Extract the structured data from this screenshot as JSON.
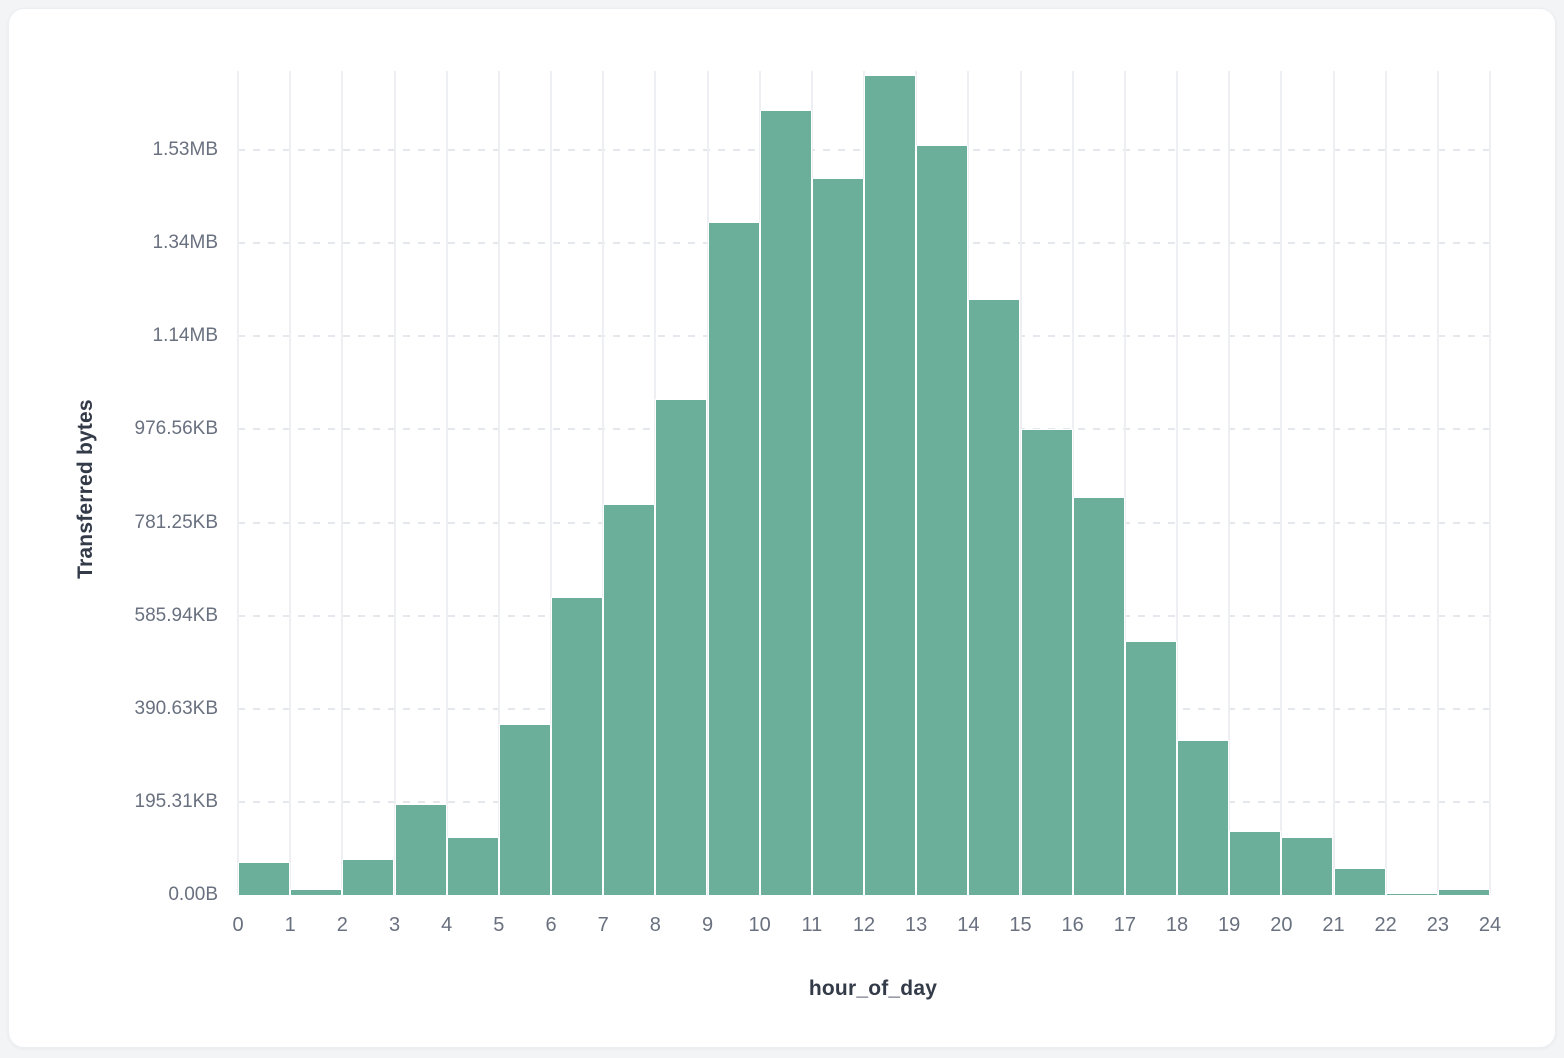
{
  "card": {
    "background": "#ffffff",
    "border_color": "#eceff2"
  },
  "colors": {
    "bar": "#6bae99",
    "grid_vertical": "#edeff2",
    "grid_horizontal": "#e4e7eb",
    "tick_text": "#69707f",
    "axis_title_text": "#333a48",
    "page_background": "#f2f4f6"
  },
  "chart_data": {
    "type": "bar",
    "title": "",
    "xlabel": "hour_of_day",
    "ylabel": "Transferred bytes",
    "categories": [
      0,
      1,
      2,
      3,
      4,
      5,
      6,
      7,
      8,
      9,
      10,
      11,
      12,
      13,
      14,
      15,
      16,
      17,
      18,
      19,
      20,
      21,
      22,
      23
    ],
    "values_bytes": [
      70600,
      13000,
      77000,
      195000,
      124000,
      368000,
      640000,
      839000,
      1066000,
      1445000,
      1687000,
      1540000,
      1762000,
      1612000,
      1280000,
      1000000,
      854000,
      546000,
      334000,
      137000,
      124000,
      58000,
      4000,
      12000
    ],
    "x_ticks": [
      "0",
      "1",
      "2",
      "3",
      "4",
      "5",
      "6",
      "7",
      "8",
      "9",
      "10",
      "11",
      "12",
      "13",
      "14",
      "15",
      "16",
      "17",
      "18",
      "19",
      "20",
      "21",
      "22",
      "23",
      "24"
    ],
    "y_ticks": [
      {
        "label": "0.00B",
        "bytes": 0
      },
      {
        "label": "195.31KB",
        "bytes": 200000
      },
      {
        "label": "390.63KB",
        "bytes": 400000
      },
      {
        "label": "585.94KB",
        "bytes": 600000
      },
      {
        "label": "781.25KB",
        "bytes": 800000
      },
      {
        "label": "976.56KB",
        "bytes": 1000000
      },
      {
        "label": "1.14MB",
        "bytes": 1200000
      },
      {
        "label": "1.34MB",
        "bytes": 1400000
      },
      {
        "label": "1.53MB",
        "bytes": 1600000
      }
    ],
    "x_domain": [
      0,
      24
    ],
    "y_max_bytes": 1770000,
    "grid": {
      "vertical": "solid",
      "horizontal": "dashed"
    },
    "legend": "none"
  }
}
